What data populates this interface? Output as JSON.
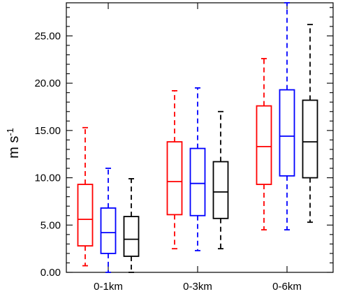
{
  "chart_data": {
    "type": "box",
    "title": "",
    "xlabel": "",
    "ylabel": {
      "base": "m s",
      "superscript": "-1"
    },
    "ylim": [
      0,
      28.5
    ],
    "yticks": [
      "0.00",
      "5.00",
      "10.00",
      "15.00",
      "20.00",
      "25.00"
    ],
    "categories": [
      "0-1km",
      "0-3km",
      "0-6km"
    ],
    "grid": false,
    "legend": "none",
    "series": [
      {
        "color": "#ff0000",
        "boxes": [
          {
            "min": 0.7,
            "q1": 2.8,
            "median": 5.6,
            "q3": 9.3,
            "max": 15.3
          },
          {
            "min": 2.5,
            "q1": 6.1,
            "median": 9.6,
            "q3": 13.8,
            "max": 19.2
          },
          {
            "min": 4.5,
            "q1": 9.3,
            "median": 13.3,
            "q3": 17.6,
            "max": 22.6
          }
        ]
      },
      {
        "color": "#0000ff",
        "boxes": [
          {
            "min": 0.0,
            "q1": 2.0,
            "median": 4.2,
            "q3": 6.8,
            "max": 11.0
          },
          {
            "min": 2.3,
            "q1": 6.0,
            "median": 9.4,
            "q3": 13.1,
            "max": 19.5
          },
          {
            "min": 4.5,
            "q1": 10.2,
            "median": 14.4,
            "q3": 19.3,
            "max": 28.5
          }
        ]
      },
      {
        "color": "#000000",
        "boxes": [
          {
            "min": 0.0,
            "q1": 1.7,
            "median": 3.5,
            "q3": 5.9,
            "max": 9.9
          },
          {
            "min": 2.5,
            "q1": 5.7,
            "median": 8.5,
            "q3": 11.7,
            "max": 17.0
          },
          {
            "min": 5.3,
            "q1": 10.0,
            "median": 13.8,
            "q3": 18.2,
            "max": 26.2
          }
        ]
      }
    ]
  }
}
